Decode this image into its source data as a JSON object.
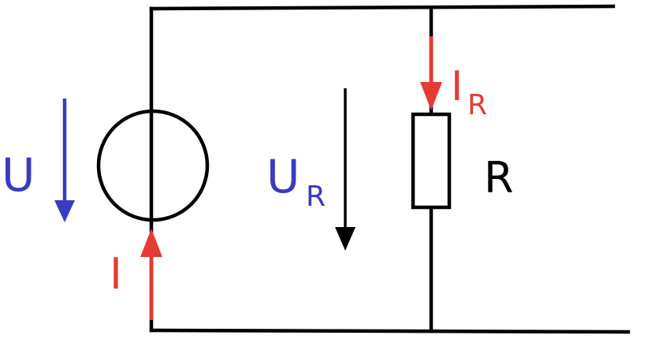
{
  "colors": {
    "wire": "#000000",
    "voltage": "#3a3ac2",
    "current": "#e53b34",
    "background": "#ffffff"
  },
  "labels": {
    "source_voltage": "U",
    "source_current": "I",
    "resistor_voltage_main": "U",
    "resistor_voltage_sub": "R",
    "resistor_current_main": "I",
    "resistor_current_sub": "R",
    "resistor_name": "R"
  }
}
